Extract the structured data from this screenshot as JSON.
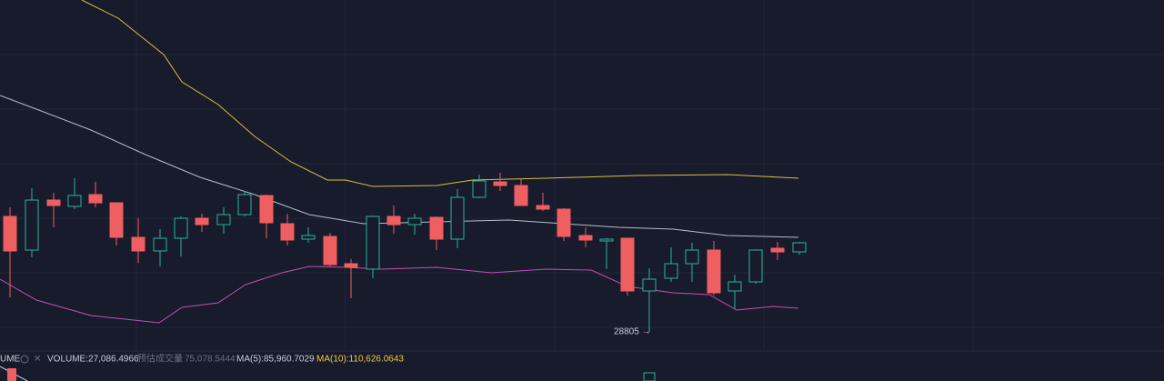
{
  "indicator_bar": {
    "label_cut": "UME",
    "volume": "VOLUME:27,086.4966",
    "estimated_label": "预估成交量",
    "estimated_value": "75,078.5444",
    "ma5": "MA(5):85,960.7029",
    "ma10": "MA(10):110,626.0643"
  },
  "annotation": {
    "low_label": "28805 →"
  }
}
